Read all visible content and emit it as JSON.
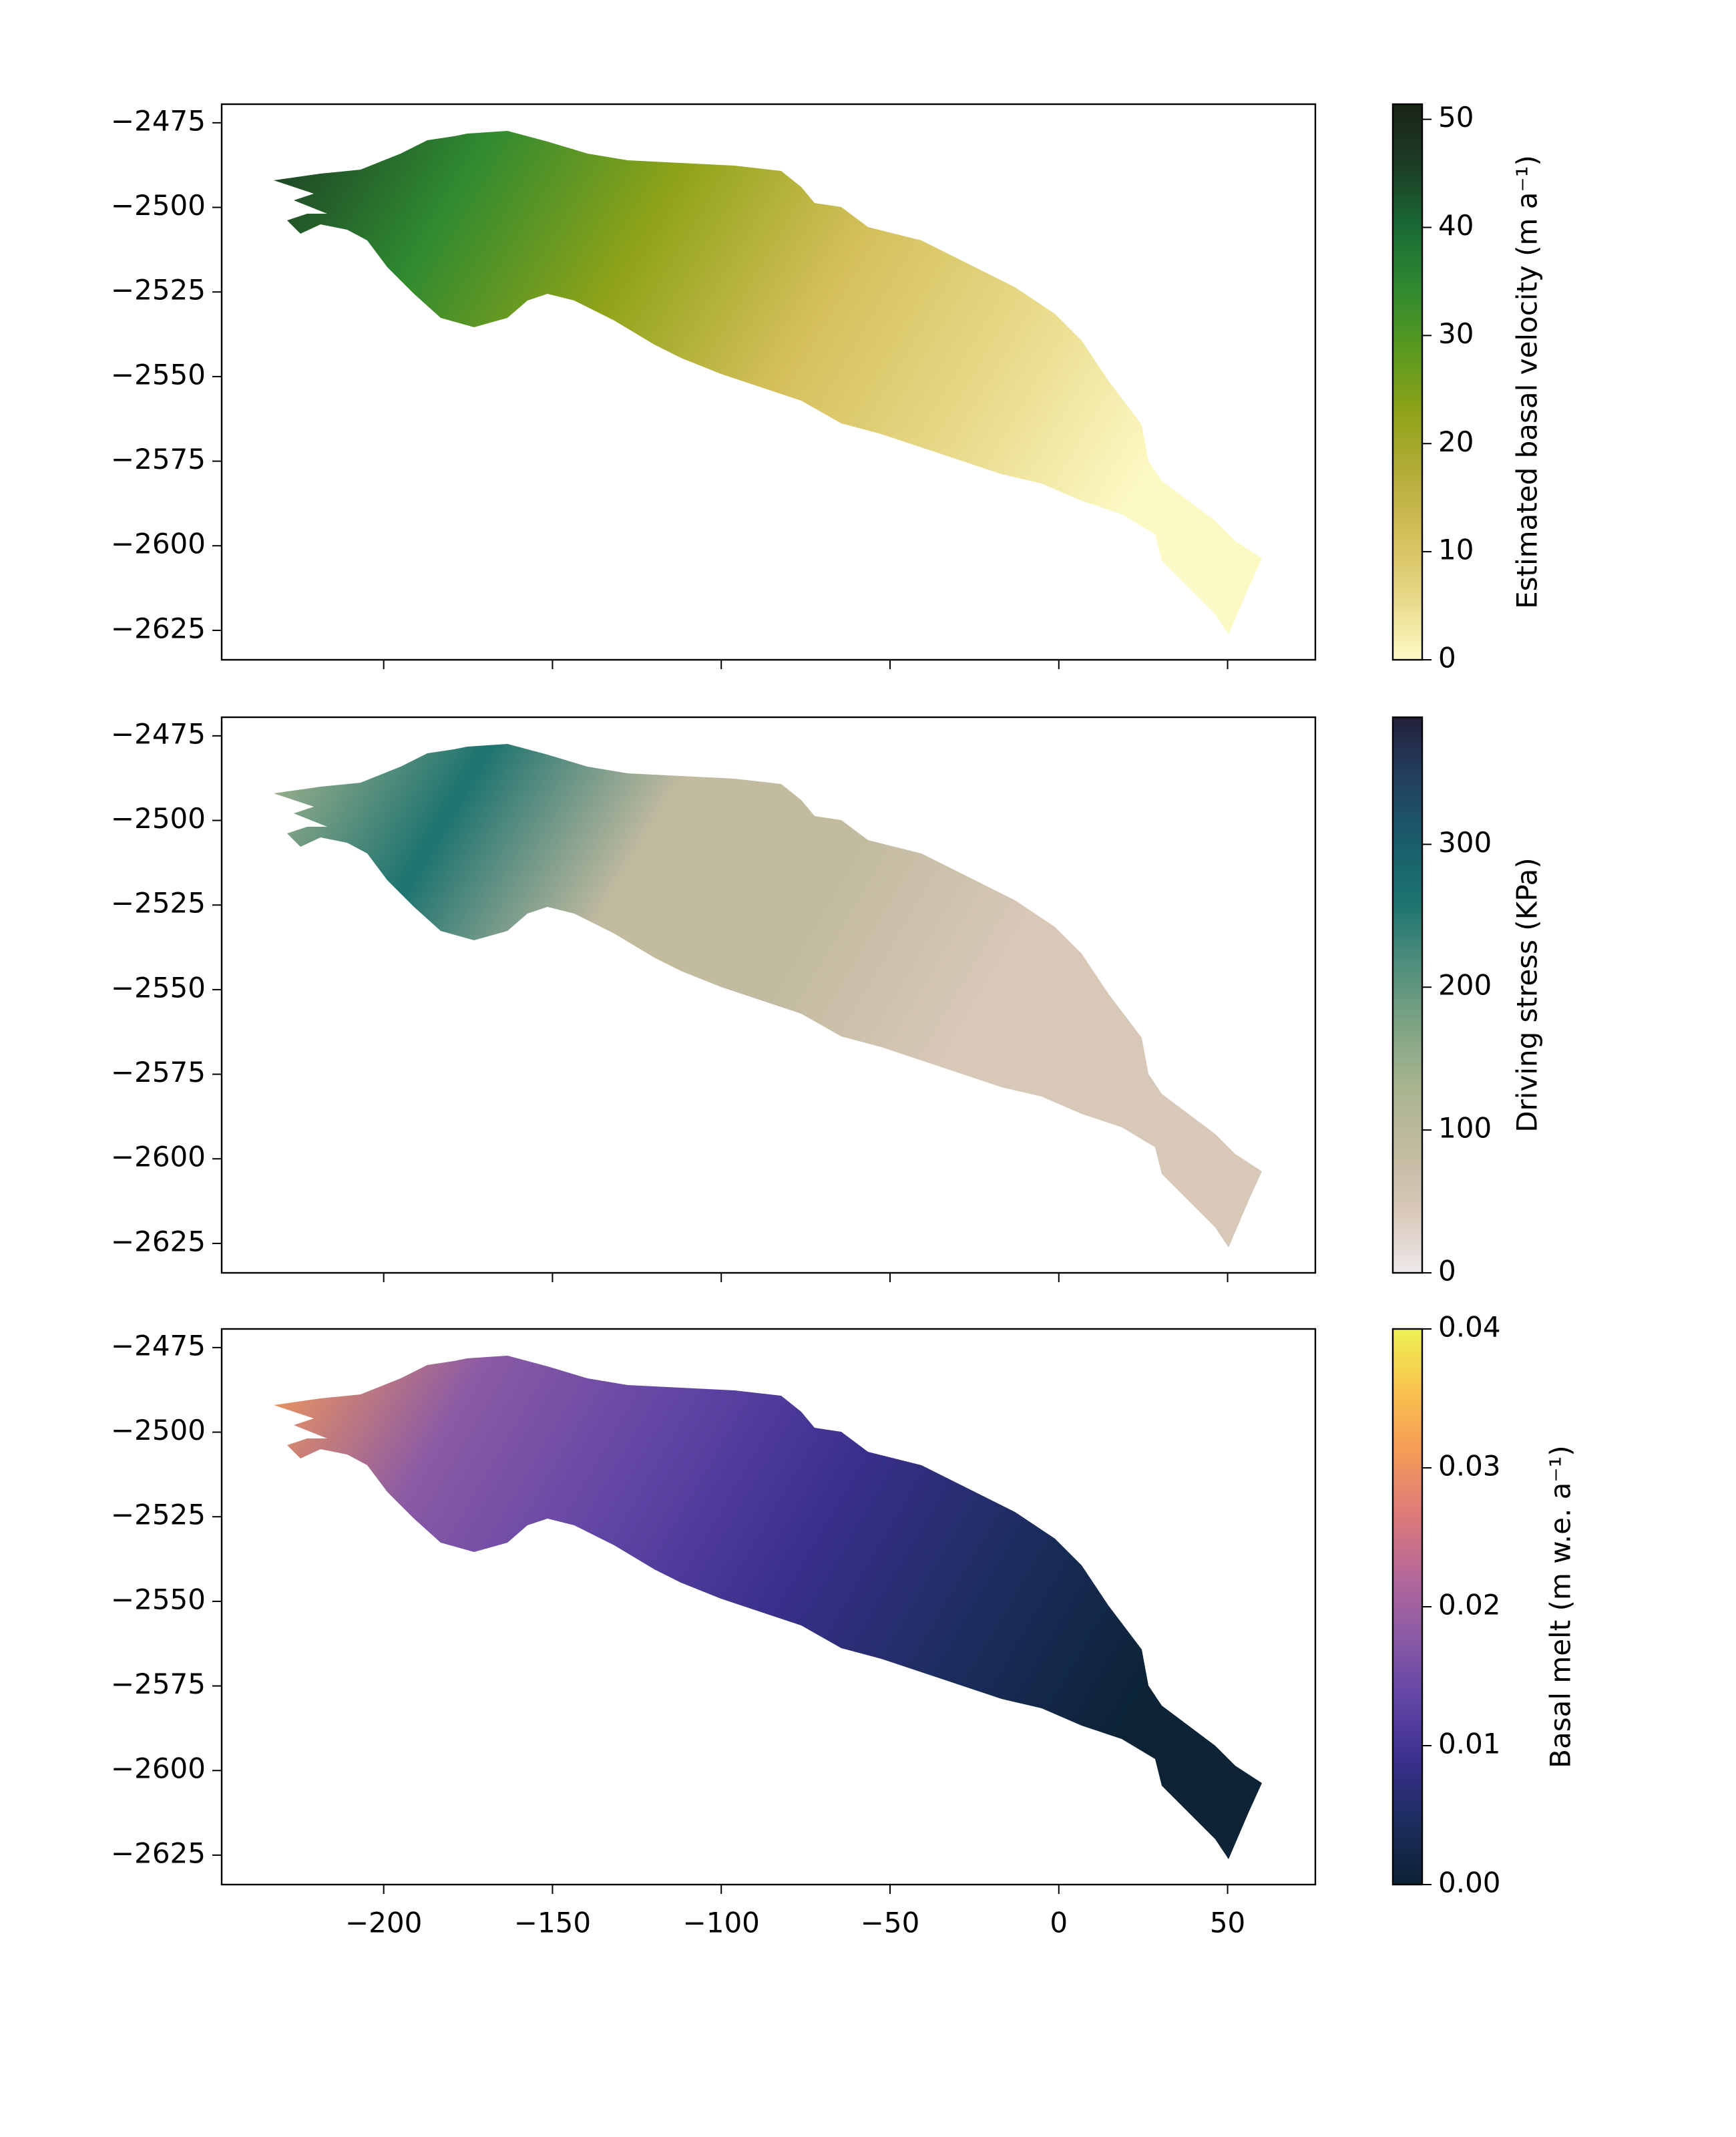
{
  "chart_data": [
    {
      "type": "map",
      "xlim": [
        -248,
        76
      ],
      "ylim": [
        -2633.7,
        -2469.5
      ],
      "xticks": [
        -200,
        -150,
        -100,
        -50,
        0,
        50
      ],
      "show_xticklabels": false,
      "yticks": [
        {
          "value": -2475,
          "label": "−2475"
        },
        {
          "value": -2500,
          "label": "−2500"
        },
        {
          "value": -2525,
          "label": "−2525"
        },
        {
          "value": -2550,
          "label": "−2550"
        },
        {
          "value": -2575,
          "label": "−2575"
        },
        {
          "value": -2600,
          "label": "−2600"
        },
        {
          "value": -2625,
          "label": "−2625"
        }
      ],
      "colorbar": {
        "label": "Estimated basal velocity (m a⁻¹)",
        "lim": [
          0,
          51.4
        ],
        "ticks": [
          0,
          10,
          20,
          30,
          40,
          50
        ],
        "colors": [
          "#fdf9c4",
          "#e8d989",
          "#d4bf5a",
          "#b5ad3a",
          "#8fa318",
          "#5a9a1e",
          "#2f8a30",
          "#1a6b35",
          "#1c3d25",
          "#1a2419"
        ]
      }
    },
    {
      "type": "map",
      "xlim": [
        -248,
        76
      ],
      "ylim": [
        -2633.7,
        -2469.5
      ],
      "xticks": [
        -200,
        -150,
        -100,
        -50,
        0,
        50
      ],
      "show_xticklabels": false,
      "yticks": [
        {
          "value": -2475,
          "label": "−2475"
        },
        {
          "value": -2500,
          "label": "−2500"
        },
        {
          "value": -2525,
          "label": "−2525"
        },
        {
          "value": -2550,
          "label": "−2550"
        },
        {
          "value": -2575,
          "label": "−2575"
        },
        {
          "value": -2600,
          "label": "−2600"
        },
        {
          "value": -2625,
          "label": "−2625"
        }
      ],
      "colorbar": {
        "label": "Driving stress (KPa)",
        "lim": [
          0,
          389
        ],
        "ticks": [
          0,
          100,
          200,
          300
        ],
        "colors": [
          "#ece8ea",
          "#d8c8b8",
          "#c2bba0",
          "#a8b58f",
          "#7fa484",
          "#4f8f7d",
          "#1c736f",
          "#195d6b",
          "#234061",
          "#23213a"
        ]
      }
    },
    {
      "type": "map",
      "xlim": [
        -248,
        76
      ],
      "ylim": [
        -2633.7,
        -2469.5
      ],
      "xticks": [
        {
          "value": -200,
          "label": "−200"
        },
        {
          "value": -150,
          "label": "−150"
        },
        {
          "value": -100,
          "label": "−100"
        },
        {
          "value": -50,
          "label": "−50"
        },
        0,
        50
      ],
      "show_xticklabels": true,
      "yticks": [
        {
          "value": -2475,
          "label": "−2475"
        },
        {
          "value": -2500,
          "label": "−2500"
        },
        {
          "value": -2525,
          "label": "−2525"
        },
        {
          "value": -2550,
          "label": "−2550"
        },
        {
          "value": -2575,
          "label": "−2575"
        },
        {
          "value": -2600,
          "label": "−2600"
        },
        {
          "value": -2625,
          "label": "−2625"
        }
      ],
      "colorbar": {
        "label": "Basal melt (m w.e. a⁻¹)",
        "lim": [
          0,
          0.04
        ],
        "ticks": [
          {
            "value": 0,
            "label": "0.00"
          },
          {
            "value": 0.01,
            "label": "0.01"
          },
          {
            "value": 0.02,
            "label": "0.02"
          },
          {
            "value": 0.03,
            "label": "0.03"
          },
          {
            "value": 0.04,
            "label": "0.04"
          }
        ],
        "colors": [
          "#0b2334",
          "#1b2d5e",
          "#3a2f8c",
          "#6145a5",
          "#8a5aa5",
          "#b5689a",
          "#de7a7a",
          "#f59a58",
          "#f8c24d",
          "#eef253"
        ]
      }
    }
  ]
}
